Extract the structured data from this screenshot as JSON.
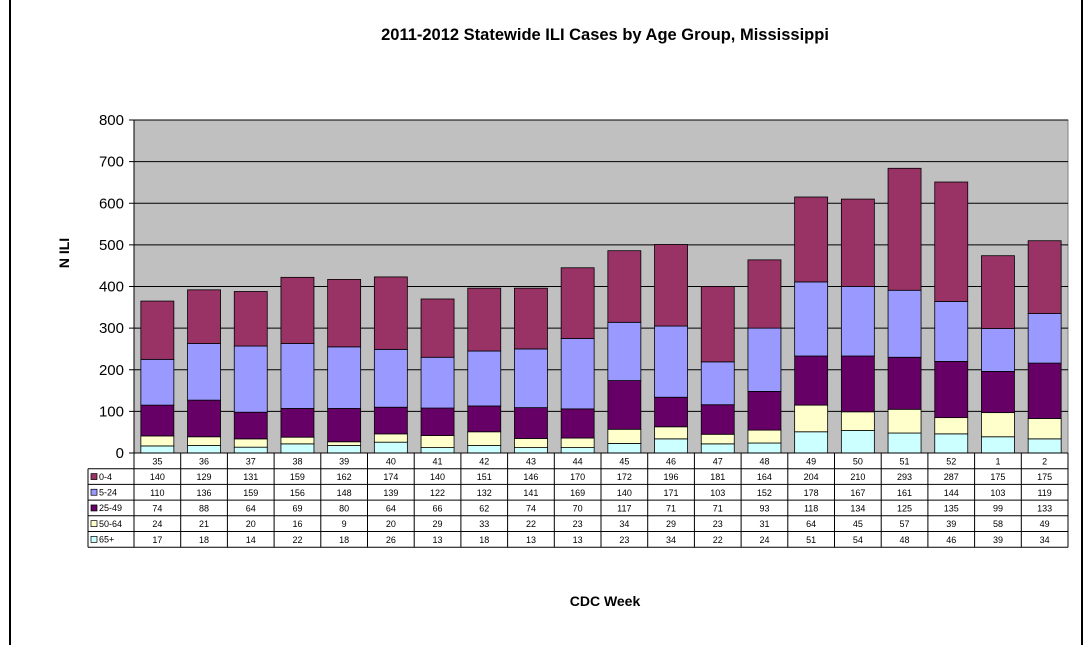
{
  "chart_data": {
    "type": "bar",
    "stacked": true,
    "title": "2011-2012 Statewide ILI Cases by Age Group, Mississippi",
    "xlabel": "CDC Week",
    "ylabel": "N ILI",
    "ylim": [
      0,
      800
    ],
    "yticks": [
      0,
      100,
      200,
      300,
      400,
      500,
      600,
      700,
      800
    ],
    "grid": true,
    "plot_background": "#c0c0c0",
    "categories": [
      "35",
      "36",
      "37",
      "38",
      "39",
      "40",
      "41",
      "42",
      "43",
      "44",
      "45",
      "46",
      "47",
      "48",
      "49",
      "50",
      "51",
      "52",
      "1",
      "2"
    ],
    "series": [
      {
        "name": "0-4",
        "color": "#993366",
        "values": [
          140,
          129,
          131,
          159,
          162,
          174,
          140,
          151,
          146,
          170,
          172,
          196,
          181,
          164,
          204,
          210,
          293,
          287,
          175,
          175
        ]
      },
      {
        "name": "5-24",
        "color": "#9999ff",
        "values": [
          110,
          136,
          159,
          156,
          148,
          139,
          122,
          132,
          141,
          169,
          140,
          171,
          103,
          152,
          178,
          167,
          161,
          144,
          103,
          119
        ]
      },
      {
        "name": "25-49",
        "color": "#660066",
        "values": [
          74,
          88,
          64,
          69,
          80,
          64,
          66,
          62,
          74,
          70,
          117,
          71,
          71,
          93,
          118,
          134,
          125,
          135,
          99,
          133
        ]
      },
      {
        "name": "50-64",
        "color": "#ffffcc",
        "values": [
          24,
          21,
          20,
          16,
          9,
          20,
          29,
          33,
          22,
          23,
          34,
          29,
          23,
          31,
          64,
          45,
          57,
          39,
          58,
          49
        ]
      },
      {
        "name": "65+",
        "color": "#ccffff",
        "values": [
          17,
          18,
          14,
          22,
          18,
          26,
          13,
          18,
          13,
          13,
          23,
          34,
          22,
          24,
          51,
          54,
          48,
          46,
          39,
          34
        ]
      }
    ]
  }
}
